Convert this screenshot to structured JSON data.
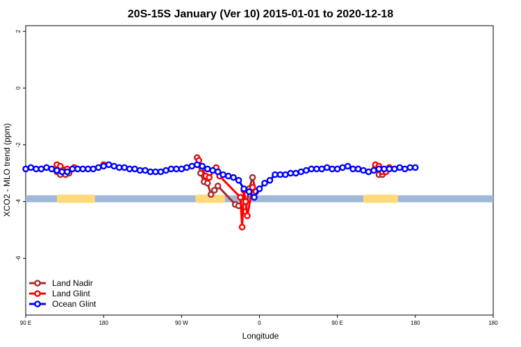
{
  "chart_data": {
    "type": "line",
    "title": "20S-15S January (Ver 10)   2015-01-01 to 2020-12-18",
    "xlabel": "Longitude",
    "ylabel": "XCO2 - MLO trend (ppm)",
    "xlim": [
      -90,
      180
    ],
    "ylim": [
      -8,
      2.2
    ],
    "x_ticks": [
      {
        "value": -90,
        "label": "90 E"
      },
      {
        "value": -45,
        "label": "180"
      },
      {
        "value": 0,
        "label": "90 W"
      },
      {
        "value": 45,
        "label": "0"
      },
      {
        "value": 90,
        "label": "90 E"
      },
      {
        "value": 135,
        "label": "180"
      }
    ],
    "y_ticks": [
      {
        "value": 2,
        "label": "2"
      },
      {
        "value": 0,
        "label": "0"
      },
      {
        "value": -2,
        "label": "-2"
      },
      {
        "value": -4,
        "label": "-4"
      },
      {
        "value": -6,
        "label": "-6"
      }
    ],
    "baseline": {
      "y": -3.9,
      "ocean_color": "#9fb8d8",
      "land_color": "#ffd97a",
      "land_segments": [
        [
          -72,
          -50
        ],
        [
          8,
          25
        ],
        [
          105,
          125
        ]
      ]
    },
    "series": [
      {
        "name": "Land Nadir",
        "color": "#a52a2a",
        "x": [
          -72,
          -70,
          -67,
          -65,
          9,
          11,
          13,
          15,
          17,
          19,
          21,
          31,
          33,
          37,
          39,
          41,
          43,
          112,
          114,
          116,
          118
        ],
        "y": [
          -2.95,
          -3.05,
          -3.05,
          -3.0,
          -2.45,
          -3.0,
          -3.3,
          -3.35,
          -3.75,
          -3.6,
          -3.45,
          -4.1,
          -4.15,
          -4.35,
          -3.55,
          -3.15,
          -3.65,
          -2.75,
          -3.05,
          -3.05,
          -2.95
        ]
      },
      {
        "name": "Land Glint",
        "color": "#ff0000",
        "x": [
          -72,
          -70,
          -66,
          -62,
          -45,
          10,
          14,
          16,
          20,
          22,
          34,
          35,
          36,
          37,
          38,
          41,
          112,
          114,
          116,
          118,
          120
        ],
        "y": [
          -2.7,
          -2.75,
          -2.85,
          -2.8,
          -2.7,
          -2.55,
          -3.1,
          -3.15,
          -2.8,
          -3.1,
          -3.85,
          -4.9,
          -3.6,
          -4.0,
          -4.5,
          -3.5,
          -2.7,
          -2.75,
          -2.95,
          -2.95,
          -2.8
        ]
      },
      {
        "name": "Ocean Glint",
        "color": "#0000ff",
        "x": [
          -90,
          -87,
          -84,
          -81,
          -78,
          -75,
          -72,
          -69,
          -66,
          -63,
          -60,
          -57,
          -54,
          -51,
          -48,
          -45,
          -42,
          -39,
          -36,
          -33,
          -30,
          -27,
          -24,
          -21,
          -18,
          -15,
          -12,
          -9,
          -6,
          -3,
          0,
          3,
          6,
          9,
          12,
          15,
          18,
          21,
          24,
          27,
          30,
          33,
          36,
          39,
          42,
          45,
          48,
          51,
          54,
          57,
          60,
          63,
          66,
          69,
          72,
          75,
          78,
          81,
          84,
          87,
          90,
          93,
          96,
          99,
          102,
          105,
          108,
          111,
          114,
          117,
          120,
          123,
          126,
          129,
          132,
          135
        ],
        "y": [
          -2.85,
          -2.8,
          -2.85,
          -2.85,
          -2.8,
          -2.85,
          -2.9,
          -2.95,
          -2.95,
          -2.85,
          -2.85,
          -2.85,
          -2.85,
          -2.85,
          -2.8,
          -2.75,
          -2.7,
          -2.75,
          -2.8,
          -2.8,
          -2.85,
          -2.85,
          -2.9,
          -2.9,
          -2.95,
          -2.95,
          -2.95,
          -2.9,
          -2.85,
          -2.85,
          -2.85,
          -2.8,
          -2.75,
          -2.7,
          -2.75,
          -2.85,
          -2.9,
          -2.95,
          -3.05,
          -3.1,
          -3.15,
          -3.25,
          -3.55,
          -3.65,
          -3.85,
          -3.55,
          -3.35,
          -3.25,
          -3.05,
          -3.05,
          -3.05,
          -3.0,
          -3.0,
          -2.95,
          -2.9,
          -2.85,
          -2.85,
          -2.85,
          -2.8,
          -2.85,
          -2.85,
          -2.8,
          -2.75,
          -2.85,
          -2.85,
          -2.9,
          -2.95,
          -2.9,
          -2.85,
          -2.85,
          -2.85,
          -2.85,
          -2.8,
          -2.85,
          -2.8,
          -2.8
        ]
      }
    ],
    "legend_position": "bottom-left"
  }
}
